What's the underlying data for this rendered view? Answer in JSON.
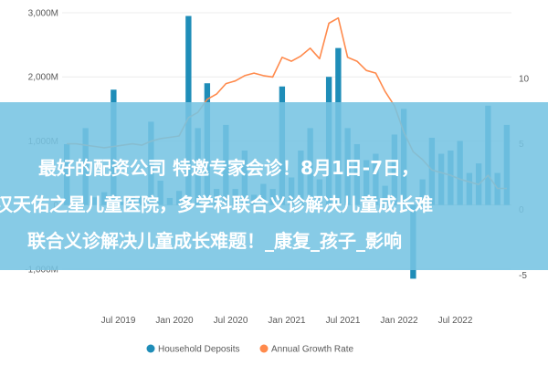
{
  "chart_data": {
    "type": "bar",
    "title": "",
    "xlabel": "",
    "ylabel": "",
    "ylim": [
      -1500,
      3000
    ],
    "y2lim": [
      -7,
      15
    ],
    "y_ticks": [
      "3,000M",
      "2,000M",
      "1,000M",
      "0",
      "-1,000M"
    ],
    "y_tick_values": [
      3000,
      2000,
      1000,
      0,
      -1000
    ],
    "y2_ticks": [
      "10",
      "5",
      "0",
      "-5"
    ],
    "y2_tick_values": [
      10,
      5,
      0,
      -5
    ],
    "x_ticks": [
      "Jul 2019",
      "Jan 2020",
      "Jul 2020",
      "Jan 2021",
      "Jul 2021",
      "Jan 2022",
      "Jul 2022"
    ],
    "x_tick_positions": [
      6,
      12,
      18,
      24,
      30,
      36,
      42
    ],
    "legend": [
      "Household Deposits",
      "Annual Growth Rate"
    ],
    "legend_position": "bottom",
    "series": [
      {
        "name": "Household Deposits",
        "type": "bar",
        "axis": "left",
        "color": "#1f8db8",
        "values": [
          950,
          80,
          1200,
          120,
          200,
          1800,
          50,
          150,
          120,
          1300,
          380,
          110,
          220,
          2950,
          1200,
          1900,
          250,
          1250,
          250,
          850,
          160,
          330,
          250,
          1850,
          430,
          850,
          1200,
          400,
          2000,
          2450,
          1200,
          950,
          700,
          800,
          300,
          1100,
          1500,
          -1150,
          400,
          1050,
          800,
          850,
          1000,
          500,
          650,
          1550,
          500,
          1250
        ]
      },
      {
        "name": "Annual Growth Rate",
        "type": "line",
        "axis": "right",
        "color": "#ff8a4c",
        "values": [
          5.0,
          5.0,
          4.9,
          4.8,
          4.7,
          4.8,
          4.9,
          5.0,
          4.9,
          5.2,
          5.4,
          5.5,
          5.6,
          7.0,
          7.4,
          8.4,
          8.8,
          9.6,
          9.8,
          10.2,
          10.4,
          10.2,
          10.1,
          11.6,
          11.3,
          11.7,
          12.3,
          11.5,
          14.2,
          14.6,
          11.6,
          11.3,
          10.6,
          10.4,
          9.0,
          7.9,
          5.9,
          4.4,
          3.8,
          3.0,
          2.8,
          2.6,
          2.3,
          2.1,
          1.9,
          2.6,
          1.6,
          1.6
        ]
      }
    ]
  }
}
